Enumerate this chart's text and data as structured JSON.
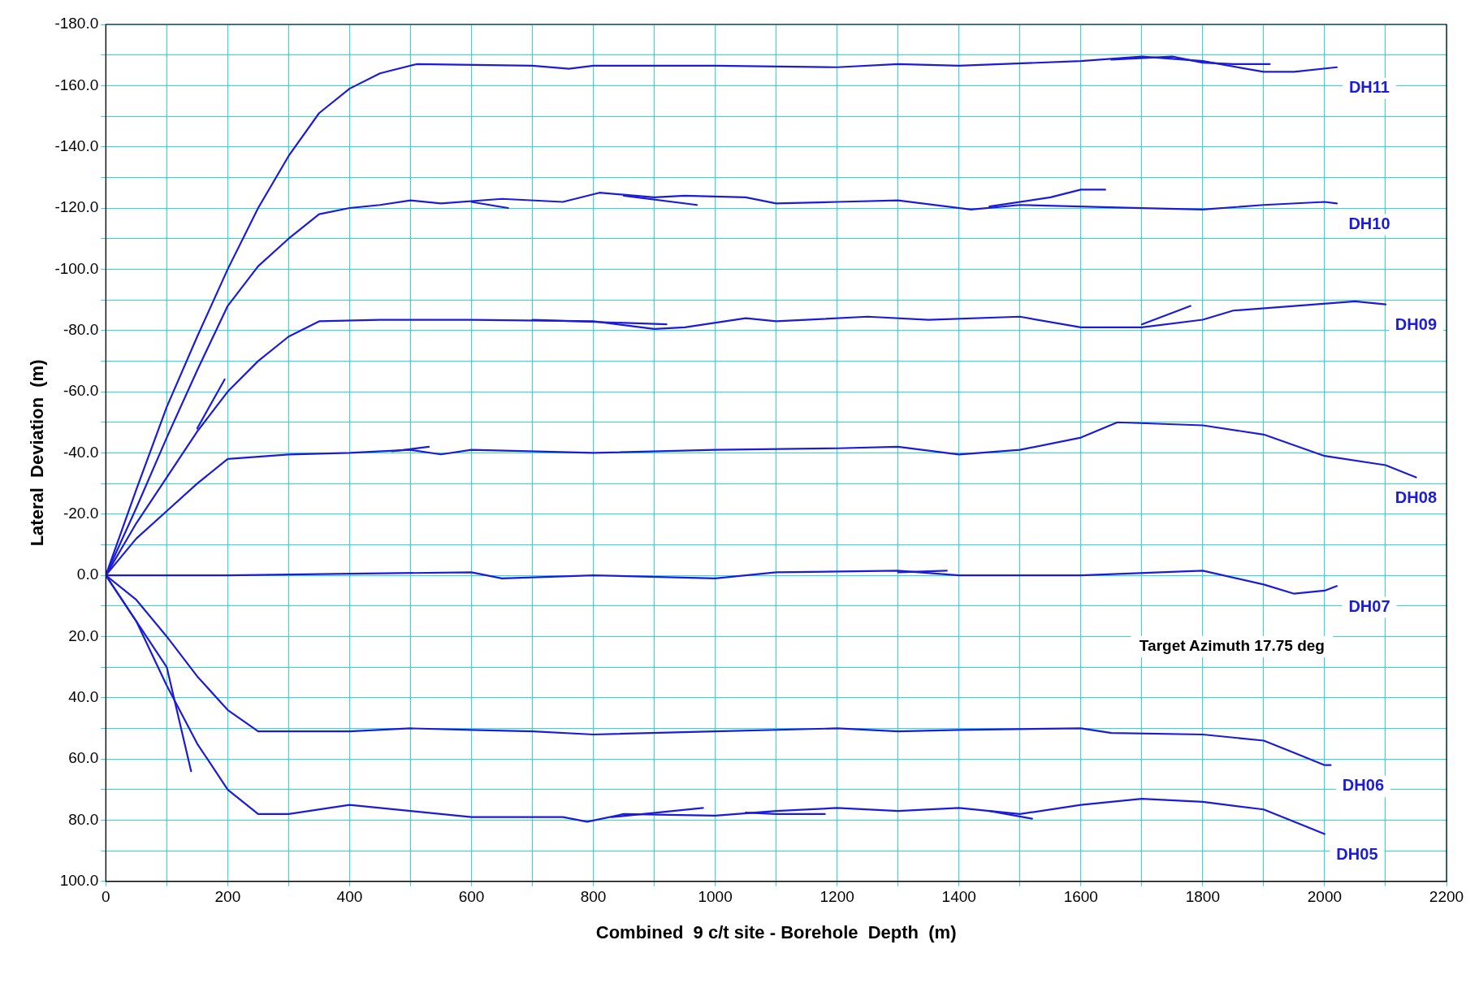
{
  "chart_data": {
    "type": "line",
    "xlabel": "Combined  9 c/t site - Borehole  Depth  (m)",
    "ylabel": "Lateral  Deviation  (m)",
    "xlim": [
      0,
      2200
    ],
    "xticks": [
      0,
      {
        "value": 100,
        "label": null
      },
      200,
      {
        "value": 300,
        "label": null
      },
      400,
      {
        "value": 500,
        "label": null
      },
      600,
      {
        "value": 700,
        "label": null
      },
      800,
      {
        "value": 900,
        "label": null
      },
      1000,
      {
        "value": 1100,
        "label": null
      },
      1200,
      {
        "value": 1300,
        "label": null
      },
      1400,
      {
        "value": 1500,
        "label": null
      },
      1600,
      {
        "value": 1700,
        "label": null
      },
      1800,
      {
        "value": 1900,
        "label": null
      },
      2000,
      {
        "value": 2100,
        "label": null
      },
      2200
    ],
    "ylim": [
      100,
      -180
    ],
    "yticks": [
      {
        "value": -180,
        "label": "-180.0"
      },
      {
        "value": -170,
        "label": null
      },
      {
        "value": -160,
        "label": "-160.0"
      },
      {
        "value": -150,
        "label": null
      },
      {
        "value": -140,
        "label": "-140.0"
      },
      {
        "value": -130,
        "label": null
      },
      {
        "value": -120,
        "label": "-120.0"
      },
      {
        "value": -110,
        "label": null
      },
      {
        "value": -100,
        "label": "-100.0"
      },
      {
        "value": -90,
        "label": null
      },
      {
        "value": -80,
        "label": "-80.0"
      },
      {
        "value": -70,
        "label": null
      },
      {
        "value": -60,
        "label": "-60.0"
      },
      {
        "value": -50,
        "label": null
      },
      {
        "value": -40,
        "label": "-40.0"
      },
      {
        "value": -30,
        "label": null
      },
      {
        "value": -20,
        "label": "-20.0"
      },
      {
        "value": -10,
        "label": null
      },
      {
        "value": 0,
        "label": "0.0"
      },
      {
        "value": 10,
        "label": null
      },
      {
        "value": 20,
        "label": "20.0"
      },
      {
        "value": 30,
        "label": null
      },
      {
        "value": 40,
        "label": "40.0"
      },
      {
        "value": 50,
        "label": null
      },
      {
        "value": 60,
        "label": "60.0"
      },
      {
        "value": 70,
        "label": null
      },
      {
        "value": 80,
        "label": "80.0"
      },
      {
        "value": 90,
        "label": null
      },
      {
        "value": 100,
        "label": "100.0"
      }
    ],
    "grid": true,
    "legend": false,
    "marker": "none",
    "line_style": "solid",
    "annotations": [
      "Target Azimuth 17.75 deg"
    ],
    "series": [
      {
        "name": "DH11",
        "color": "#1c1cd8",
        "x": [
          0,
          50,
          100,
          150,
          200,
          250,
          300,
          350,
          400,
          450,
          510,
          700,
          760,
          800,
          1000,
          1200,
          1300,
          1400,
          1600,
          1700,
          1800,
          1900,
          1950,
          2020
        ],
        "values": [
          0,
          -28,
          -55,
          -78,
          -100,
          -120,
          -137,
          -151,
          -159,
          -164,
          -167,
          -166.5,
          -165.5,
          -166.5,
          -166.5,
          -166,
          -167,
          -166.5,
          -168,
          -169.5,
          -168,
          -164.5,
          -164.5,
          -166
        ]
      },
      {
        "color": "#1c1cd8",
        "x": [
          1650,
          1750,
          1800,
          1850,
          1910
        ],
        "values": [
          -168.5,
          -169.5,
          -167.5,
          -167,
          -167
        ]
      },
      {
        "name": "DH10",
        "color": "#1c1cd8",
        "x": [
          0,
          50,
          100,
          150,
          200,
          250,
          300,
          350,
          400,
          450,
          500,
          550,
          650,
          750,
          810,
          900,
          950,
          1050,
          1100,
          1200,
          1300,
          1420,
          1500,
          1700,
          1800,
          1900,
          2000,
          2020
        ],
        "values": [
          0,
          -22,
          -45,
          -67,
          -88,
          -101,
          -110,
          -118,
          -120,
          -121,
          -122.5,
          -121.5,
          -123,
          -122,
          -125,
          -123.5,
          -124,
          -123.5,
          -121.5,
          -122,
          -122.5,
          -119.5,
          -121,
          -120,
          -119.5,
          -121,
          -122,
          -121.5
        ]
      },
      {
        "color": "#1c1cd8",
        "x": [
          600,
          660
        ],
        "values": [
          -122,
          -120
        ]
      },
      {
        "color": "#1c1cd8",
        "x": [
          850,
          970
        ],
        "values": [
          -124,
          -121
        ]
      },
      {
        "color": "#1c1cd8",
        "x": [
          1450,
          1550,
          1600,
          1640
        ],
        "values": [
          -120.5,
          -123.5,
          -126,
          -126
        ]
      },
      {
        "name": "DH09",
        "color": "#1c1cd8",
        "x": [
          0,
          50,
          100,
          150,
          200,
          250,
          300,
          350,
          450,
          600,
          800,
          900,
          950,
          1050,
          1100,
          1250,
          1350,
          1500,
          1600,
          1700,
          1800,
          1850,
          1950,
          2050,
          2100
        ],
        "values": [
          0,
          -17,
          -32,
          -47,
          -60,
          -70,
          -78,
          -83,
          -83.5,
          -83.5,
          -83,
          -80.5,
          -81,
          -84,
          -83,
          -84.5,
          -83.5,
          -84.5,
          -81,
          -81,
          -83.5,
          -86.5,
          -88,
          -89.5,
          -88.5
        ]
      },
      {
        "color": "#1c1cd8",
        "x": [
          150,
          195
        ],
        "values": [
          -48,
          -64
        ]
      },
      {
        "color": "#1c1cd8",
        "x": [
          700,
          920
        ],
        "values": [
          -83.5,
          -82
        ]
      },
      {
        "color": "#1c1cd8",
        "x": [
          1700,
          1780
        ],
        "values": [
          -82,
          -88
        ]
      },
      {
        "name": "DH08",
        "color": "#1c1cd8",
        "x": [
          0,
          50,
          100,
          150,
          200,
          300,
          400,
          500,
          550,
          600,
          800,
          1000,
          1200,
          1300,
          1400,
          1500,
          1600,
          1660,
          1800,
          1900,
          2000,
          2100,
          2150
        ],
        "values": [
          0,
          -12,
          -21,
          -30,
          -38,
          -39.5,
          -40,
          -41,
          -39.5,
          -41,
          -40,
          -41,
          -41.5,
          -42,
          -39.5,
          -41,
          -45,
          -50,
          -49,
          -46,
          -39,
          -36,
          -32
        ]
      },
      {
        "color": "#1c1cd8",
        "x": [
          470,
          530
        ],
        "values": [
          -40.5,
          -42
        ]
      },
      {
        "name": "DH07",
        "color": "#1c1cd8",
        "x": [
          0,
          200,
          400,
          600,
          650,
          800,
          1000,
          1100,
          1300,
          1400,
          1600,
          1800,
          1900,
          1950,
          2000,
          2020
        ],
        "values": [
          0,
          0,
          -0.5,
          -1,
          1,
          0,
          1,
          -1,
          -1.5,
          0,
          0,
          -1.5,
          3,
          6,
          5,
          3.5
        ]
      },
      {
        "color": "#1c1cd8",
        "x": [
          1300,
          1380
        ],
        "values": [
          -1,
          -1.5
        ]
      },
      {
        "name": "DH06",
        "color": "#1c1cd8",
        "x": [
          0,
          50,
          100,
          150,
          200,
          250,
          300,
          400,
          500,
          600,
          700,
          800,
          1000,
          1200,
          1300,
          1400,
          1600,
          1650,
          1800,
          1900,
          1950,
          2000,
          2010
        ],
        "values": [
          0,
          8,
          20,
          33,
          44,
          51,
          51,
          51,
          50,
          50.5,
          51,
          52,
          51,
          50,
          51,
          50.5,
          50,
          51.5,
          52,
          54,
          58,
          62,
          62
        ]
      },
      {
        "name": "DH05",
        "color": "#1c1cd8",
        "x": [
          0,
          50,
          100,
          150,
          200,
          250,
          300,
          400,
          500,
          600,
          750,
          790,
          850,
          1000,
          1100,
          1200,
          1300,
          1400,
          1500,
          1600,
          1700,
          1800,
          1900,
          2000
        ],
        "values": [
          0,
          15,
          36,
          55,
          70,
          78,
          78,
          75,
          77,
          79,
          79,
          80.5,
          78,
          78.5,
          77,
          76,
          77,
          76,
          78,
          75,
          73,
          74,
          76.5,
          84.5
        ]
      },
      {
        "color": "#1c1cd8",
        "x": [
          0,
          100,
          140
        ],
        "values": [
          0,
          30,
          64
        ]
      },
      {
        "color": "#1c1cd8",
        "x": [
          830,
          980
        ],
        "values": [
          79,
          76
        ]
      },
      {
        "color": "#1c1cd8",
        "x": [
          1050,
          1100,
          1180
        ],
        "values": [
          77.5,
          78,
          78
        ]
      },
      {
        "color": "#1c1cd8",
        "x": [
          1450,
          1520
        ],
        "values": [
          77,
          79.5
        ]
      }
    ]
  }
}
